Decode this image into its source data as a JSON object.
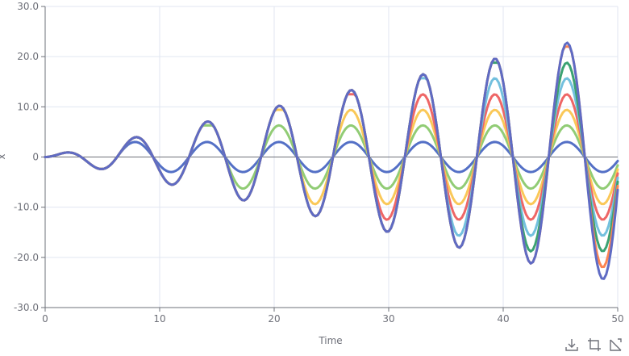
{
  "chart_data": {
    "type": "line",
    "title": "",
    "xlabel": "Time",
    "ylabel": "x",
    "xlim": [
      0,
      50
    ],
    "ylim": [
      -30,
      30
    ],
    "x_ticks": [
      "0",
      "10",
      "20",
      "30",
      "40",
      "50"
    ],
    "y_ticks": [
      "-30.0",
      "-20.0",
      "-10.0",
      "0",
      "10.0",
      "20.0",
      "30.0"
    ],
    "grid": true,
    "x_step": 0.2,
    "series_model": "x(t) = (t/2)*sin(t) for t < onset, else y = A*sin(t); A = amplitude, onset = t at which the series saturates",
    "series": [
      {
        "amplitude": 3,
        "onset": 6.28,
        "color": "#5470c6"
      },
      {
        "amplitude": 6.3,
        "onset": 15.7,
        "color": "#91cc75"
      },
      {
        "amplitude": 9.4,
        "onset": 21.99,
        "color": "#fac858"
      },
      {
        "amplitude": 12.5,
        "onset": 28.27,
        "color": "#ee6666"
      },
      {
        "amplitude": 15.7,
        "onset": 34.56,
        "color": "#73c0de"
      },
      {
        "amplitude": 18.8,
        "onset": 40.84,
        "color": "#3ba272"
      },
      {
        "amplitude": 22,
        "onset": 47.12,
        "color": "#fc8452"
      },
      {
        "amplitude": 25,
        "onset": 50,
        "color": "#5f6bc4"
      }
    ]
  },
  "toolbox": {
    "icons": [
      "download-icon",
      "crop-icon",
      "restore-icon"
    ]
  }
}
